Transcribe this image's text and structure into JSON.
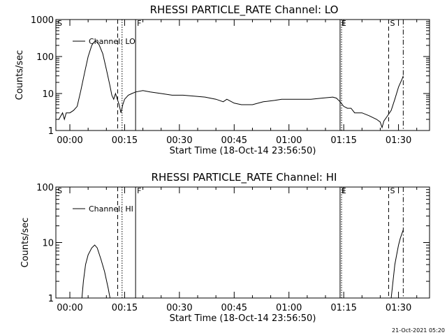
{
  "timestamp": "21-Oct-2021 05:20",
  "chart_data": [
    {
      "type": "line",
      "title": "RHESSI PARTICLE_RATE Channel: LO",
      "xlabel": "Start Time (18-Oct-14 23:56:50)",
      "ylabel": "Counts/sec",
      "y_scale": "log",
      "ylim": [
        1,
        1000
      ],
      "y_ticks": [
        "1",
        "10",
        "100",
        "1000"
      ],
      "x_unit": "minutes",
      "xlim": [
        -3.83,
        98.5
      ],
      "x_ticks": [
        {
          "value": 0,
          "label": "00:00"
        },
        {
          "value": 15,
          "label": "00:15"
        },
        {
          "value": 30,
          "label": "00:30"
        },
        {
          "value": 45,
          "label": "00:45"
        },
        {
          "value": 60,
          "label": "01:00"
        },
        {
          "value": 75,
          "label": "01:15"
        },
        {
          "value": 90,
          "label": "01:30"
        }
      ],
      "legend": {
        "position": "top-left",
        "label": "Channel: LO"
      },
      "markers": [
        {
          "label": "S",
          "x": -3.83,
          "style": "solid",
          "has_line": false
        },
        {
          "label": "",
          "x": 13.1,
          "style": "dashed",
          "has_line": true
        },
        {
          "label": "",
          "x": 14.3,
          "style": "dotted",
          "has_line": true
        },
        {
          "label": "F",
          "x": 18.0,
          "style": "solid",
          "has_line": true
        },
        {
          "label": "E",
          "x": 74.0,
          "style": "solid",
          "has_line": true
        },
        {
          "label": "",
          "x": 74.4,
          "style": "dotted",
          "has_line": true
        },
        {
          "label": "S",
          "x": 87.3,
          "style": "dashed",
          "has_line": true
        },
        {
          "label": "",
          "x": 91.3,
          "style": "dashdot",
          "has_line": true
        }
      ],
      "series": [
        {
          "name": "Channel: LO",
          "points": [
            [
              -3.0,
              2
            ],
            [
              -2.0,
              3
            ],
            [
              -1.5,
              2
            ],
            [
              -1.0,
              3
            ],
            [
              0,
              3
            ],
            [
              1,
              3.5
            ],
            [
              2,
              4.5
            ],
            [
              3,
              12
            ],
            [
              4,
              35
            ],
            [
              5,
              100
            ],
            [
              6,
              200
            ],
            [
              6.5,
              240
            ],
            [
              7,
              260
            ],
            [
              7.5,
              240
            ],
            [
              8,
              210
            ],
            [
              9,
              120
            ],
            [
              10,
              45
            ],
            [
              11,
              16
            ],
            [
              11.5,
              9
            ],
            [
              12,
              7
            ],
            [
              12.5,
              10
            ],
            [
              13,
              7
            ],
            [
              13.5,
              5
            ],
            [
              14,
              3
            ],
            [
              14.5,
              5
            ],
            [
              15,
              7
            ],
            [
              16,
              9
            ],
            [
              17,
              10
            ],
            [
              18,
              11
            ],
            [
              20,
              12
            ],
            [
              22,
              11
            ],
            [
              25,
              10
            ],
            [
              28,
              9
            ],
            [
              31,
              9
            ],
            [
              34,
              8.5
            ],
            [
              37,
              8
            ],
            [
              40,
              7
            ],
            [
              42,
              6
            ],
            [
              43,
              7
            ],
            [
              45,
              5.5
            ],
            [
              47,
              5
            ],
            [
              50,
              5
            ],
            [
              53,
              6
            ],
            [
              56,
              6.5
            ],
            [
              58,
              7
            ],
            [
              60,
              7
            ],
            [
              63,
              7
            ],
            [
              66,
              7
            ],
            [
              69,
              7.5
            ],
            [
              72,
              8
            ],
            [
              73,
              7.5
            ],
            [
              74,
              6
            ],
            [
              75,
              4.5
            ],
            [
              76,
              4
            ],
            [
              77,
              4
            ],
            [
              78,
              3
            ],
            [
              80,
              3
            ],
            [
              82,
              2.5
            ],
            [
              84,
              2
            ],
            [
              85,
              1.7
            ],
            [
              85.5,
              1.2
            ],
            [
              86,
              1.8
            ],
            [
              87,
              2.5
            ],
            [
              88,
              3.5
            ],
            [
              89,
              7
            ],
            [
              90,
              15
            ],
            [
              91,
              25
            ],
            [
              91.3,
              30
            ]
          ]
        }
      ]
    },
    {
      "type": "line",
      "title": "RHESSI PARTICLE_RATE Channel: HI",
      "xlabel": "Start Time (18-Oct-14 23:56:50)",
      "ylabel": "Counts/sec",
      "y_scale": "log",
      "ylim": [
        1,
        100
      ],
      "y_ticks": [
        "1",
        "10",
        "100"
      ],
      "x_unit": "minutes",
      "xlim": [
        -3.83,
        98.5
      ],
      "x_ticks": [
        {
          "value": 0,
          "label": "00:00"
        },
        {
          "value": 15,
          "label": "00:15"
        },
        {
          "value": 30,
          "label": "00:30"
        },
        {
          "value": 45,
          "label": "00:45"
        },
        {
          "value": 60,
          "label": "01:00"
        },
        {
          "value": 75,
          "label": "01:15"
        },
        {
          "value": 90,
          "label": "01:30"
        }
      ],
      "legend": {
        "position": "top-left",
        "label": "Channel: HI"
      },
      "markers": [
        {
          "label": "S",
          "x": -3.83,
          "style": "solid",
          "has_line": false
        },
        {
          "label": "",
          "x": 13.1,
          "style": "dashed",
          "has_line": true
        },
        {
          "label": "",
          "x": 14.3,
          "style": "dotted",
          "has_line": true
        },
        {
          "label": "F",
          "x": 18.0,
          "style": "solid",
          "has_line": true
        },
        {
          "label": "E",
          "x": 74.0,
          "style": "solid",
          "has_line": true
        },
        {
          "label": "",
          "x": 74.4,
          "style": "dotted",
          "has_line": true
        },
        {
          "label": "S",
          "x": 87.3,
          "style": "dashed",
          "has_line": true
        },
        {
          "label": "",
          "x": 91.3,
          "style": "dashdot",
          "has_line": true
        }
      ],
      "series": [
        {
          "name": "Channel: HI",
          "segments": [
            [
              [
                3.3,
                1
              ],
              [
                3.7,
                2
              ],
              [
                4.3,
                4
              ],
              [
                5,
                6
              ],
              [
                6,
                8
              ],
              [
                6.8,
                9
              ],
              [
                7.5,
                8
              ],
              [
                8.5,
                5
              ],
              [
                9.5,
                3
              ],
              [
                10.5,
                1.5
              ],
              [
                11,
                1
              ]
            ],
            [
              [
                88.0,
                1
              ],
              [
                88.5,
                2
              ],
              [
                89,
                4
              ],
              [
                89.5,
                6
              ],
              [
                90,
                9
              ],
              [
                90.5,
                12
              ],
              [
                91.3,
                17
              ]
            ]
          ]
        }
      ]
    }
  ]
}
